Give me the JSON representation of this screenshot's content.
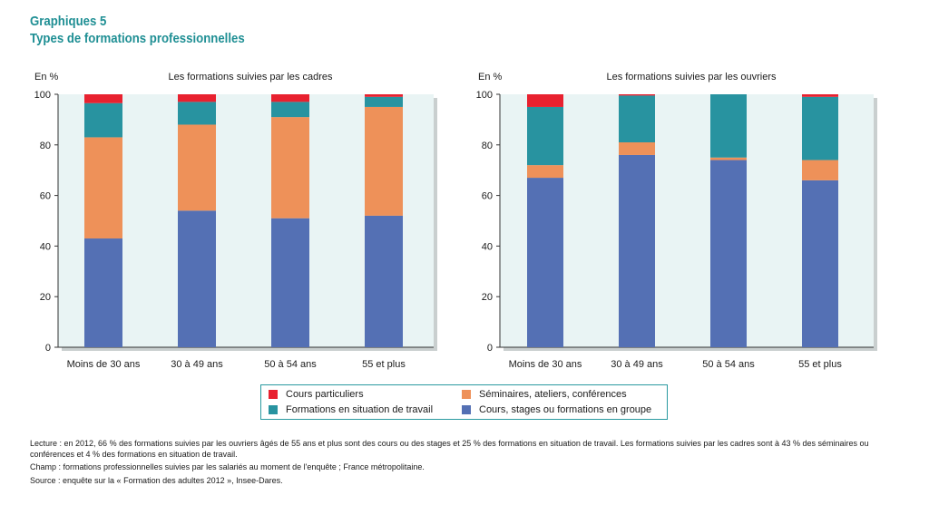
{
  "header": {
    "title": "Graphiques 5",
    "subtitle": "Types de formations professionnelles"
  },
  "colors": {
    "particuliers": "#e8212f",
    "seminaires": "#ee9159",
    "situation_travail": "#2893a0",
    "groupe": "#5470b4",
    "plot_background": "#e9f4f4",
    "accent": "#1f8f94"
  },
  "legend": {
    "items": [
      {
        "key": "particuliers",
        "label": "Cours particuliers"
      },
      {
        "key": "seminaires",
        "label": "Séminaires, ateliers, conférences"
      },
      {
        "key": "situation_travail",
        "label": "Formations en situation de travail"
      },
      {
        "key": "groupe",
        "label": "Cours, stages ou formations en groupe"
      }
    ]
  },
  "chart_data": [
    {
      "type": "bar",
      "stacked": true,
      "title": "Les formations suivies par les cadres",
      "ylabel": "En %",
      "ylim": [
        0,
        100
      ],
      "yticks": [
        0,
        20,
        40,
        60,
        80,
        100
      ],
      "categories": [
        "Moins de 30 ans",
        "30 à 49 ans",
        "50 à 54 ans",
        "55 et plus"
      ],
      "series": [
        {
          "name": "Cours, stages ou formations en groupe",
          "key": "groupe",
          "values": [
            43,
            54,
            51,
            52
          ]
        },
        {
          "name": "Séminaires, ateliers, conférences",
          "key": "seminaires",
          "values": [
            40,
            34,
            40,
            43
          ]
        },
        {
          "name": "Formations en situation de travail",
          "key": "situation_travail",
          "values": [
            13.5,
            9,
            6,
            4
          ]
        },
        {
          "name": "Cours particuliers",
          "key": "particuliers",
          "values": [
            3.5,
            3,
            3,
            1
          ]
        }
      ]
    },
    {
      "type": "bar",
      "stacked": true,
      "title": "Les formations suivies par les ouvriers",
      "ylabel": "En %",
      "ylim": [
        0,
        100
      ],
      "yticks": [
        0,
        20,
        40,
        60,
        80,
        100
      ],
      "categories": [
        "Moins de 30 ans",
        "30 à 49 ans",
        "50 à 54 ans",
        "55 et plus"
      ],
      "series": [
        {
          "name": "Cours, stages ou formations en groupe",
          "key": "groupe",
          "values": [
            67,
            76,
            74,
            66
          ]
        },
        {
          "name": "Séminaires, ateliers, conférences",
          "key": "seminaires",
          "values": [
            5,
            5,
            1,
            8
          ]
        },
        {
          "name": "Formations en situation de travail",
          "key": "situation_travail",
          "values": [
            23,
            18.5,
            25,
            25
          ]
        },
        {
          "name": "Cours particuliers",
          "key": "particuliers",
          "values": [
            5,
            0.5,
            0,
            1
          ]
        }
      ]
    }
  ],
  "notes": {
    "lecture": "Lecture : en 2012, 66 % des  formations suivies par les ouvriers âgés de 55 ans et plus sont des cours ou des stages et 25 % des formations en situation de travail. Les formations suivies par les cadres sont à 43 % des séminaires ou conférences et 4 % des formations en situation de travail.",
    "champ": "Champ : formations professionnelles suivies par les salariés au moment de l'enquête ; France métropolitaine.",
    "source": "Source : enquête sur la « Formation des adultes 2012 », Insee-Dares."
  }
}
